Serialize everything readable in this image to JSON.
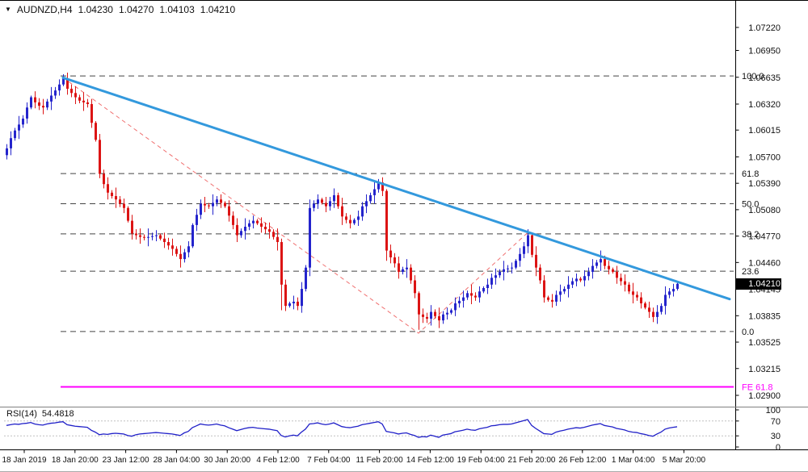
{
  "header": {
    "symbol": "AUDNZD,H4",
    "open": "1.04230",
    "high": "1.04270",
    "low": "1.04103",
    "close": "1.04210"
  },
  "colors": {
    "bull": "#2424CC",
    "bear": "#DC1414",
    "trendline": "#3399DD",
    "fib_line": "#444444",
    "fe_line": "#FF00FF",
    "fe_dashed": "#F07070",
    "rsi_line": "#2020C8",
    "level_dotted": "#C0C0C0",
    "separator": "#808080",
    "axis_text": "#111111",
    "badge_bg": "#000000",
    "badge_text": "#FFFFFF"
  },
  "price_scale": {
    "ticks": [
      "1.07220",
      "1.06950",
      "1.06635",
      "1.06320",
      "1.06015",
      "1.05700",
      "1.05390",
      "1.05080",
      "1.04770",
      "1.04460",
      "1.04145",
      "1.03835",
      "1.03525",
      "1.03215",
      "1.02900"
    ],
    "current": "1.04210"
  },
  "time_scale": {
    "labels": [
      "18 Jan 2019",
      "18 Jan 20:00",
      "23 Jan 12:00",
      "28 Jan 04:00",
      "30 Jan 20:00",
      "4 Feb 12:00",
      "7 Feb 04:00",
      "11 Feb 20:00",
      "14 Feb 12:00",
      "19 Feb 04:00",
      "21 Feb 20:00",
      "26 Feb 12:00",
      "1 Mar 04:00",
      "5 Mar 20:00"
    ]
  },
  "chart_data": {
    "type": "candlestick",
    "symbol": "AUDNZD",
    "timeframe": "H4",
    "price_axis": {
      "max": 1.0722,
      "min": 1.029
    },
    "fibonacci": {
      "levels": [
        {
          "label": "100.0",
          "price": 1.0665
        },
        {
          "label": "61.8",
          "price": 1.05504
        },
        {
          "label": "50.0",
          "price": 1.0515
        },
        {
          "label": "38.2",
          "price": 1.04796
        },
        {
          "label": "23.6",
          "price": 1.04358
        },
        {
          "label": "0.0",
          "price": 1.0365
        }
      ]
    },
    "fibonacci_expansion": {
      "label": "FE 61.8",
      "price": 1.03,
      "anchors": [
        {
          "bar": 14,
          "price": 1.0663
        },
        {
          "bar": 102,
          "price": 1.0363
        },
        {
          "bar": 129,
          "price": 1.0481
        }
      ]
    },
    "trendline": {
      "from": {
        "bar": 14,
        "price": 1.0663
      },
      "to": {
        "bar": 179,
        "price": 1.0403
      }
    },
    "candles": {
      "first_open": 1.0572,
      "closes": [
        1.058,
        1.0592,
        1.0601,
        1.0608,
        1.0615,
        1.0628,
        1.064,
        1.0634,
        1.063,
        1.0628,
        1.0635,
        1.0642,
        1.0648,
        1.0655,
        1.0662,
        1.065,
        1.0645,
        1.064,
        1.0636,
        1.0634,
        1.0632,
        1.061,
        1.059,
        1.055,
        1.0538,
        1.0528,
        1.0524,
        1.052,
        1.0515,
        1.051,
        1.0495,
        1.048,
        1.0478,
        1.0476,
        1.0475,
        1.0476,
        1.0477,
        1.0478,
        1.0474,
        1.047,
        1.0466,
        1.0462,
        1.0456,
        1.045,
        1.0458,
        1.0465,
        1.049,
        1.0502,
        1.0515,
        1.0513,
        1.0512,
        1.0516,
        1.052,
        1.0516,
        1.0512,
        1.0501,
        1.049,
        1.0478,
        1.0483,
        1.0488,
        1.0492,
        1.0495,
        1.0492,
        1.0488,
        1.0485,
        1.0482,
        1.0476,
        1.047,
        1.042,
        1.0395,
        1.0398,
        1.04,
        1.0395,
        1.0415,
        1.044,
        1.051,
        1.0515,
        1.052,
        1.0516,
        1.0512,
        1.0518,
        1.0525,
        1.0512,
        1.05,
        1.0496,
        1.0492,
        1.0496,
        1.05,
        1.0512,
        1.0518,
        1.0525,
        1.0532,
        1.054,
        1.053,
        1.046,
        1.0452,
        1.0445,
        1.0435,
        1.0438,
        1.044,
        1.0425,
        1.041,
        1.0385,
        1.0382,
        1.038,
        1.0388,
        1.0383,
        1.0378,
        1.0385,
        1.0387,
        1.039,
        1.0398,
        1.0401,
        1.0405,
        1.041,
        1.0407,
        1.0405,
        1.0412,
        1.0416,
        1.042,
        1.0428,
        1.0431,
        1.0435,
        1.0438,
        1.0439,
        1.044,
        1.0448,
        1.0456,
        1.0465,
        1.0478,
        1.0455,
        1.044,
        1.0425,
        1.0405,
        1.0402,
        1.04,
        1.0408,
        1.0412,
        1.0415,
        1.042,
        1.0424,
        1.0427,
        1.0425,
        1.043,
        1.0435,
        1.0442,
        1.0446,
        1.045,
        1.0442,
        1.0438,
        1.0435,
        1.0428,
        1.0424,
        1.042,
        1.0412,
        1.0408,
        1.0405,
        1.0398,
        1.0393,
        1.0388,
        1.0382,
        1.0388,
        1.0395,
        1.0408,
        1.0412,
        1.0415,
        1.0421
      ],
      "wick_pattern": [
        0.0005,
        0.0008,
        0.0003,
        0.001,
        0.0004,
        0.0006,
        0.0002,
        0.0007
      ],
      "wick_overrides": {
        "14": {
          "h": 1.0667
        },
        "23": {
          "l": 1.0545
        },
        "68": {
          "l": 1.039
        },
        "94": {
          "l": 1.0448
        },
        "102": {
          "l": 1.0367
        },
        "107": {
          "l": 1.0369
        },
        "129": {
          "h": 1.0485
        },
        "160": {
          "l": 1.0376
        }
      }
    },
    "rsi": {
      "label": "RSI(14)",
      "value": "54.4818",
      "scale": [
        100,
        70,
        30,
        0
      ],
      "levels": [
        70,
        30
      ],
      "values": [
        58,
        60,
        62,
        61,
        63,
        64,
        66,
        62,
        60,
        59,
        62,
        64,
        65,
        67,
        68,
        60,
        58,
        56,
        55,
        54,
        53,
        45,
        40,
        33,
        35,
        34,
        36,
        37,
        36,
        35,
        31,
        29,
        33,
        35,
        36,
        37,
        38,
        39,
        38,
        37,
        36,
        35,
        33,
        31,
        38,
        42,
        52,
        57,
        62,
        60,
        59,
        60,
        62,
        59,
        57,
        52,
        48,
        44,
        47,
        50,
        52,
        53,
        51,
        50,
        49,
        48,
        46,
        44,
        31,
        27,
        30,
        32,
        30,
        40,
        48,
        62,
        63,
        65,
        62,
        60,
        62,
        65,
        60,
        55,
        53,
        52,
        54,
        56,
        60,
        62,
        64,
        66,
        68,
        62,
        42,
        40,
        38,
        35,
        37,
        38,
        34,
        31,
        26,
        28,
        27,
        32,
        29,
        26,
        32,
        34,
        36,
        41,
        43,
        45,
        48,
        46,
        45,
        49,
        51,
        53,
        57,
        58,
        60,
        61,
        61,
        62,
        65,
        68,
        71,
        74,
        58,
        50,
        43,
        36,
        35,
        34,
        40,
        43,
        45,
        48,
        50,
        52,
        51,
        53,
        56,
        59,
        61,
        63,
        58,
        56,
        54,
        50,
        48,
        46,
        42,
        40,
        39,
        36,
        34,
        31,
        29,
        35,
        40,
        48,
        51,
        53,
        54.5
      ]
    }
  }
}
